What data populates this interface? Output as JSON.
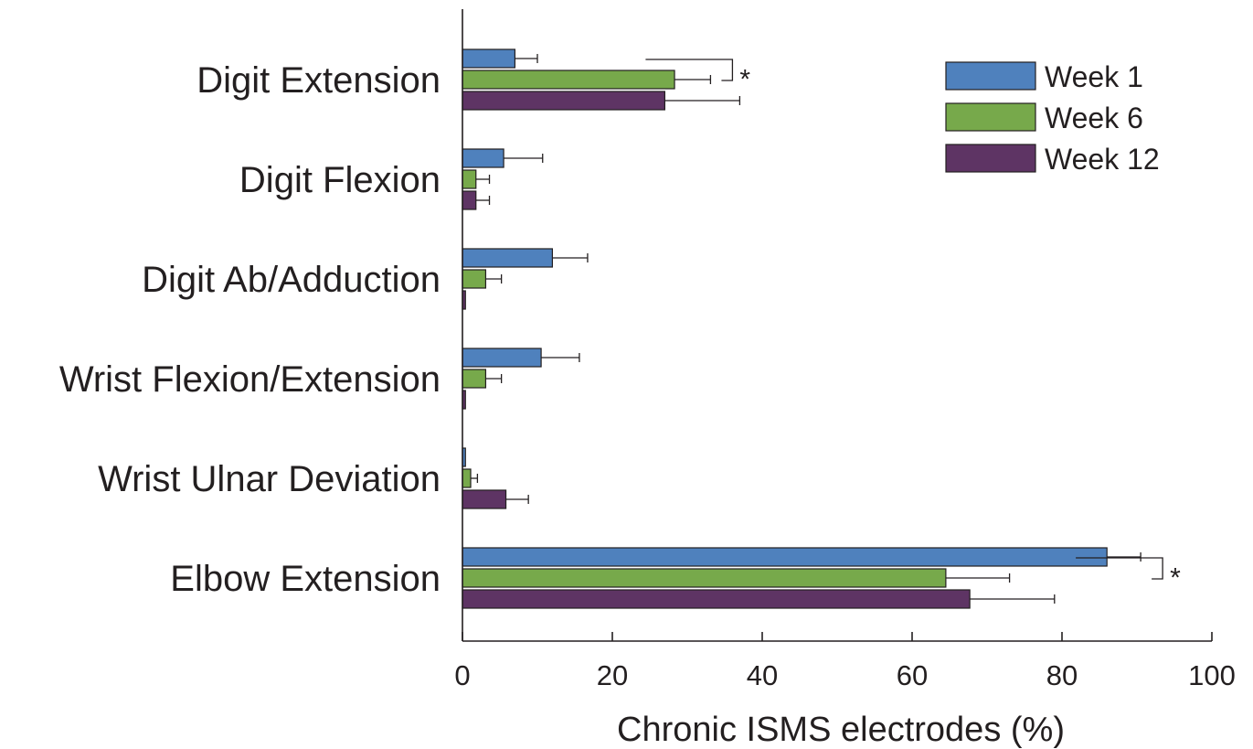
{
  "chart_data": {
    "type": "bar",
    "orientation": "horizontal",
    "categories": [
      "Digit Extension",
      "Digit Flexion",
      "Digit Ab/Adduction",
      "Wrist Flexion/Extension",
      "Wrist Ulnar Deviation",
      "Elbow Extension"
    ],
    "series": [
      {
        "name": "Week 1",
        "color": "#4f81bd",
        "values": [
          7,
          5.5,
          12,
          10.5,
          0.4,
          86
        ],
        "errors": [
          3,
          5.2,
          4.7,
          5.1,
          0,
          4.5
        ]
      },
      {
        "name": "Week 6",
        "color": "#77a94b",
        "values": [
          28.3,
          1.8,
          3.1,
          3.1,
          1.1,
          64.5
        ],
        "errors": [
          4.8,
          1.8,
          2.1,
          2.1,
          0.9,
          8.5
        ]
      },
      {
        "name": "Week 12",
        "color": "#5e3464",
        "values": [
          27,
          1.8,
          0.4,
          0.4,
          5.8,
          67.7
        ],
        "errors": [
          10,
          1.8,
          0,
          0,
          3,
          11.3
        ]
      }
    ],
    "xlabel": "Chronic ISMS electrodes (%)",
    "ylabel": "",
    "xlim": [
      0,
      100
    ],
    "xticks": [
      "0",
      "20",
      "40",
      "60",
      "80",
      "100"
    ],
    "grid": false,
    "legend_position": "top-right",
    "significance": [
      {
        "category": "Digit Extension",
        "label": "*",
        "from_series": "Week 1",
        "to_series": "Week 6"
      },
      {
        "category": "Elbow Extension",
        "label": "*",
        "from_series": "Week 1",
        "to_series": "Week 6"
      }
    ]
  }
}
